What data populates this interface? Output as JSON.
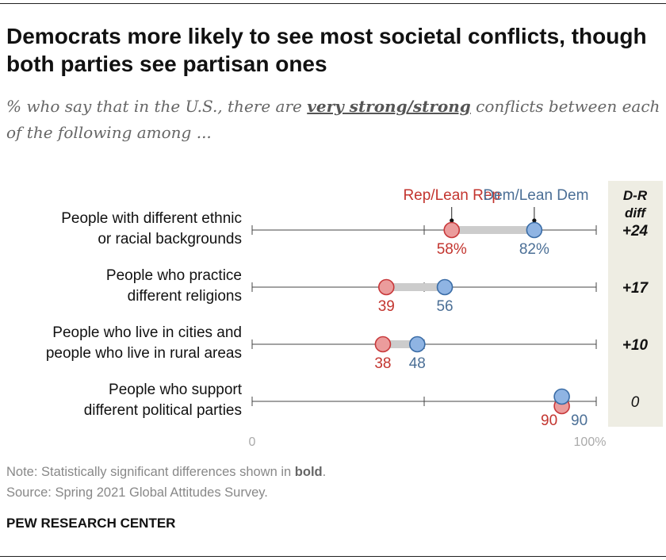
{
  "title": "Democrats more likely to see most societal conflicts, though both parties see partisan ones",
  "subtitle": {
    "before": "% who say that in the U.S., there are ",
    "emphasis": "very strong/strong",
    "after": " conflicts between each of the following among ..."
  },
  "note": {
    "before": "Note: Statistically significant differences shown in ",
    "emphasis": "bold",
    "after": "."
  },
  "source": "Source: Spring 2021 Global Attitudes Survey.",
  "brand": "PEW RESEARCH CENTER",
  "colors": {
    "rep_fill": "#eb9c9c",
    "rep_stroke": "#c8383a",
    "rep_text": "#c3352f",
    "dem_fill": "#8fb4e3",
    "dem_stroke": "#3a6ca6",
    "dem_text": "#4b6f96",
    "diff_bg": "#eeede3",
    "gap_bar": "#cccccc"
  },
  "chart_data": {
    "type": "dot",
    "xlim": [
      0,
      100
    ],
    "x_tick_labels": [
      "0",
      "100%"
    ],
    "diff_header": [
      "D-R",
      "diff"
    ],
    "categories": [
      [
        "People with different ethnic",
        "or racial backgrounds"
      ],
      [
        "People who practice",
        "different religions"
      ],
      [
        "People who live in cities and",
        "people who live in rural areas"
      ],
      [
        "People who support",
        "different political parties"
      ]
    ],
    "series": [
      {
        "name": "Rep/Lean Rep",
        "values": [
          58,
          39,
          38,
          90
        ],
        "labels": [
          "58%",
          "39",
          "38",
          "90"
        ]
      },
      {
        "name": "Dem/Lean Dem",
        "values": [
          82,
          56,
          48,
          90
        ],
        "labels": [
          "82%",
          "56",
          "48",
          "90"
        ]
      }
    ],
    "diff": [
      "+24",
      "+17",
      "+10",
      "0"
    ],
    "diff_significant": [
      true,
      true,
      true,
      false
    ]
  }
}
